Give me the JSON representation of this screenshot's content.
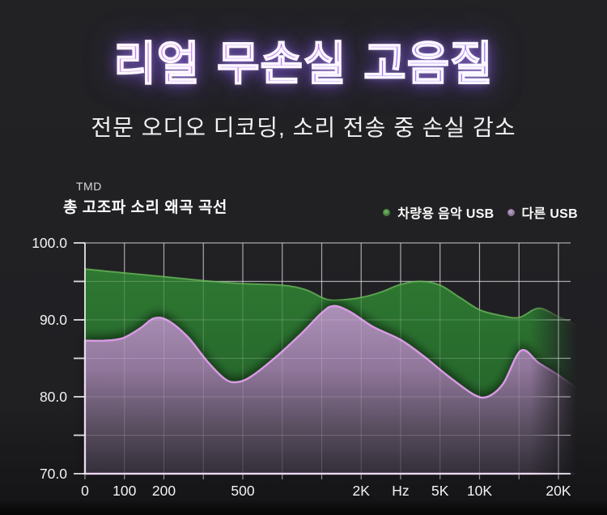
{
  "banner": {
    "title": "리얼 무손실 고음질",
    "subtitle": "전문 오디오 디코딩, 소리 전송 중 손실 감소"
  },
  "chart": {
    "note": "TMD",
    "title": "총 고조파 소리 왜곡 곡선",
    "legend": [
      {
        "label": "차량용 음악 USB",
        "color": "#3f7d3a",
        "dot_highlight": "#7fbf6a"
      },
      {
        "label": "다른 USB",
        "color": "#8d7596",
        "dot_highlight": "#c3a9cf"
      }
    ]
  },
  "theme": {
    "background": "#202023",
    "title_gradient": [
      "#ff76d6",
      "#c55ce2",
      "#5a47f0"
    ],
    "title_glow": "#8f5cff",
    "text": "#f4f4f6",
    "grid": "#c9c9cf"
  },
  "chart_data": {
    "type": "area",
    "title": "총 고조파 소리 왜곡 곡선",
    "title_note": "TMD",
    "xlabel": "Hz",
    "ylabel": "",
    "ylim": [
      70,
      100
    ],
    "y_tick_labels": [
      "100.0",
      "90.0",
      "80.0",
      "70.0"
    ],
    "y_tick_values": [
      100,
      90,
      80,
      70
    ],
    "y_grid_step": 5,
    "x_grid_count": 13,
    "x_ticks": [
      {
        "grid": 0,
        "label": "0"
      },
      {
        "grid": 1,
        "label": "100"
      },
      {
        "grid": 2,
        "label": "200"
      },
      {
        "grid": 4,
        "label": "500"
      },
      {
        "grid": 7,
        "label": "2K"
      },
      {
        "grid": 8,
        "label": "Hz"
      },
      {
        "grid": 9,
        "label": "5K"
      },
      {
        "grid": 10,
        "label": "10K"
      },
      {
        "grid": 12,
        "label": "20K"
      }
    ],
    "x_unit_note": "series x values are gridline indices 0-13; labeled gridlines map to the ticks above",
    "grid": true,
    "legend_position": "top-right",
    "series": [
      {
        "name": "차량용 음악 USB",
        "line_color": "#5aa24e",
        "fill_top": "#2f7e33",
        "fill_bottom": "#215f27",
        "points": [
          [
            0,
            96.6
          ],
          [
            1,
            96.1
          ],
          [
            2,
            95.6
          ],
          [
            3,
            95.1
          ],
          [
            4,
            94.7
          ],
          [
            5,
            94.5
          ],
          [
            5.6,
            93.9
          ],
          [
            6.1,
            92.7
          ],
          [
            6.5,
            92.6
          ],
          [
            7,
            92.9
          ],
          [
            7.5,
            93.6
          ],
          [
            8,
            94.6
          ],
          [
            8.5,
            95.0
          ],
          [
            9,
            94.5
          ],
          [
            9.5,
            92.9
          ],
          [
            10,
            91.3
          ],
          [
            10.5,
            90.6
          ],
          [
            11,
            90.3
          ],
          [
            11.5,
            91.5
          ],
          [
            12,
            90.4
          ],
          [
            12.5,
            89.2
          ],
          [
            12.95,
            88.3
          ]
        ]
      },
      {
        "name": "다른 USB",
        "line_color": "#d99ae4",
        "fill_top": "#b192bd",
        "fill_bottom": "#342e3a",
        "points": [
          [
            0,
            87.3
          ],
          [
            0.5,
            87.3
          ],
          [
            0.95,
            87.6
          ],
          [
            1.4,
            88.9
          ],
          [
            1.75,
            90.2
          ],
          [
            2.1,
            89.9
          ],
          [
            2.6,
            87.8
          ],
          [
            3.1,
            84.6
          ],
          [
            3.55,
            82.3
          ],
          [
            3.85,
            81.9
          ],
          [
            4.2,
            82.6
          ],
          [
            4.8,
            85.0
          ],
          [
            5.5,
            88.3
          ],
          [
            6.0,
            90.9
          ],
          [
            6.3,
            91.8
          ],
          [
            6.7,
            91.1
          ],
          [
            7.3,
            89.1
          ],
          [
            8.0,
            87.4
          ],
          [
            8.6,
            85.2
          ],
          [
            9.2,
            82.7
          ],
          [
            9.85,
            80.3
          ],
          [
            10.2,
            80.0
          ],
          [
            10.6,
            81.7
          ],
          [
            11.05,
            86.0
          ],
          [
            11.5,
            84.4
          ],
          [
            12.0,
            82.8
          ],
          [
            12.5,
            81.0
          ],
          [
            12.95,
            79.6
          ]
        ]
      }
    ]
  }
}
